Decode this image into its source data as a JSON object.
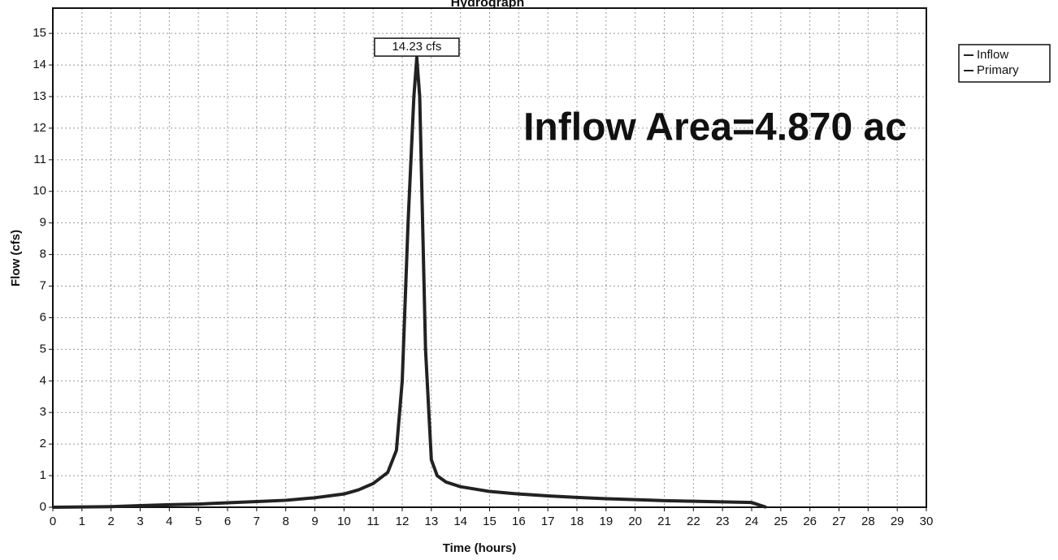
{
  "chart_data": {
    "type": "line",
    "title": "Hydrograph",
    "x_label": "Time (hours)",
    "y_label": "Flow (cfs)",
    "x": [
      0,
      2,
      3,
      4,
      5,
      6,
      7,
      8,
      9,
      10,
      10.5,
      11,
      11.5,
      11.8,
      12,
      12.2,
      12.4,
      12.5,
      12.6,
      12.8,
      13,
      13.2,
      13.5,
      14,
      15,
      16,
      17,
      18,
      19,
      20,
      21,
      22,
      23,
      24,
      24.5
    ],
    "series": [
      {
        "name": "Inflow",
        "color": "#222222",
        "values": [
          0,
          0.02,
          0.05,
          0.08,
          0.1,
          0.14,
          0.18,
          0.22,
          0.3,
          0.42,
          0.55,
          0.75,
          1.1,
          1.8,
          4,
          9,
          13,
          14.23,
          13,
          5,
          1.5,
          1.0,
          0.8,
          0.65,
          0.5,
          0.42,
          0.36,
          0.31,
          0.27,
          0.24,
          0.21,
          0.19,
          0.17,
          0.15,
          0
        ]
      },
      {
        "name": "Primary",
        "color": "#222222",
        "values": [
          0,
          0.02,
          0.05,
          0.08,
          0.1,
          0.14,
          0.18,
          0.22,
          0.3,
          0.42,
          0.55,
          0.75,
          1.1,
          1.8,
          4,
          9,
          13,
          14.23,
          13,
          5,
          1.5,
          1.0,
          0.8,
          0.65,
          0.5,
          0.42,
          0.36,
          0.31,
          0.27,
          0.24,
          0.21,
          0.19,
          0.17,
          0.15,
          0
        ]
      }
    ],
    "peak_label": "14.23 cfs",
    "annotation": "Inflow Area=4.870 ac",
    "xlim": [
      0,
      30
    ],
    "ylim": [
      0,
      15.8
    ],
    "xticks": [
      0,
      1,
      2,
      3,
      4,
      5,
      6,
      7,
      8,
      9,
      10,
      11,
      12,
      13,
      14,
      15,
      16,
      17,
      18,
      19,
      20,
      21,
      22,
      23,
      24,
      25,
      26,
      27,
      28,
      29,
      30
    ],
    "yticks": [
      0,
      1,
      2,
      3,
      4,
      5,
      6,
      7,
      8,
      9,
      10,
      11,
      12,
      13,
      14,
      15
    ],
    "grid": true
  }
}
